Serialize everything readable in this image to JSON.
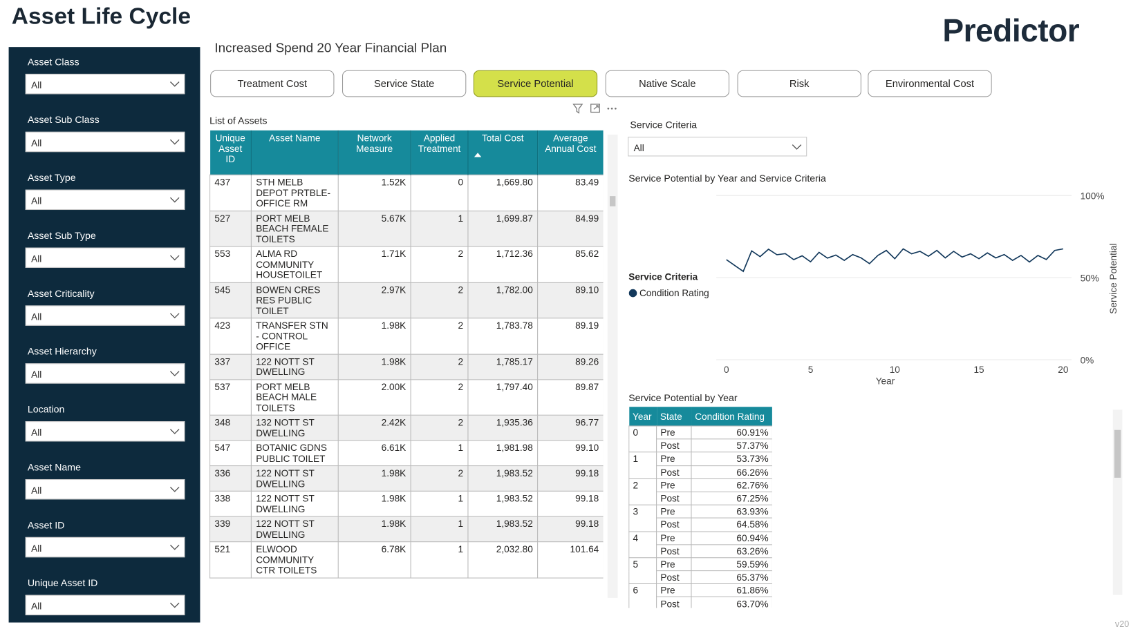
{
  "header": {
    "title": "Asset Life Cycle",
    "logo": "Predictor",
    "subtitle": "Increased Spend 20 Year Financial Plan"
  },
  "filters": [
    {
      "label": "Asset Class",
      "value": "All"
    },
    {
      "label": "Asset Sub Class",
      "value": "All"
    },
    {
      "label": "Asset Type",
      "value": "All"
    },
    {
      "label": "Asset Sub Type",
      "value": "All"
    },
    {
      "label": "Asset Criticality",
      "value": "All"
    },
    {
      "label": "Asset Hierarchy",
      "value": "All"
    },
    {
      "label": "Location",
      "value": "All"
    },
    {
      "label": "Asset Name",
      "value": "All"
    },
    {
      "label": "Asset ID",
      "value": "All"
    },
    {
      "label": "Unique Asset ID",
      "value": "All"
    }
  ],
  "tabs": [
    "Treatment Cost",
    "Service State",
    "Service Potential",
    "Native Scale",
    "Risk",
    "Environmental Cost"
  ],
  "active_tab": 2,
  "assets_table": {
    "title": "List of Assets",
    "columns": [
      "Unique Asset ID",
      "Asset Name",
      "Network Measure",
      "Applied Treatment",
      "Total Cost",
      "Average Annual Cost"
    ],
    "rows": [
      [
        "437",
        "STH MELB DEPOT PRTBLE-OFFICE RM",
        "1.52K",
        "0",
        "1,669.80",
        "83.49"
      ],
      [
        "527",
        "PORT MELB BEACH FEMALE TOILETS",
        "5.67K",
        "1",
        "1,699.87",
        "84.99"
      ],
      [
        "553",
        "ALMA RD COMMUNITY HOUSETOILET",
        "1.71K",
        "2",
        "1,712.36",
        "85.62"
      ],
      [
        "545",
        "BOWEN CRES RES PUBLIC TOILET",
        "2.97K",
        "2",
        "1,782.00",
        "89.10"
      ],
      [
        "423",
        "TRANSFER STN - CONTROL OFFICE",
        "1.98K",
        "2",
        "1,783.78",
        "89.19"
      ],
      [
        "337",
        "122 NOTT ST DWELLING",
        "1.98K",
        "2",
        "1,785.17",
        "89.26"
      ],
      [
        "537",
        "PORT MELB BEACH MALE TOILETS",
        "2.00K",
        "2",
        "1,797.40",
        "89.87"
      ],
      [
        "348",
        "132 NOTT ST DWELLING",
        "2.42K",
        "2",
        "1,935.36",
        "96.77"
      ],
      [
        "547",
        "BOTANIC GDNS PUBLIC TOILET",
        "6.61K",
        "1",
        "1,981.98",
        "99.10"
      ],
      [
        "336",
        "122 NOTT ST DWELLING",
        "1.98K",
        "2",
        "1,983.52",
        "99.18"
      ],
      [
        "338",
        "122 NOTT ST DWELLING",
        "1.98K",
        "1",
        "1,983.52",
        "99.18"
      ],
      [
        "339",
        "122 NOTT ST DWELLING",
        "1.98K",
        "1",
        "1,983.52",
        "99.18"
      ],
      [
        "521",
        "ELWOOD COMMUNITY CTR TOILETS",
        "6.78K",
        "1",
        "2,032.80",
        "101.64"
      ]
    ]
  },
  "service_criteria": {
    "label": "Service Criteria",
    "value": "All"
  },
  "chart_data": {
    "type": "line",
    "title": "Service Potential by Year and Service Criteria",
    "x": [
      0,
      0.5,
      1,
      1.5,
      2,
      2.5,
      3,
      3.5,
      4,
      4.5,
      5,
      5.5,
      6,
      6.5,
      7,
      7.5,
      8,
      8.5,
      9,
      9.5,
      10,
      10.5,
      11,
      11.5,
      12,
      12.5,
      13,
      13.5,
      14,
      14.5,
      15,
      15.5,
      16,
      16.5,
      17,
      17.5,
      18,
      18.5,
      19,
      19.5,
      20
    ],
    "series": [
      {
        "name": "Condition Rating",
        "color": "#12385b",
        "values": [
          60.91,
          57.37,
          53.73,
          66.26,
          62.76,
          67.25,
          63.93,
          64.58,
          60.94,
          63.26,
          59.59,
          65.37,
          61.86,
          63.7,
          60.5,
          64,
          62,
          58.5,
          63.5,
          66.5,
          61.5,
          67.5,
          64.5,
          66,
          63,
          66.5,
          62,
          66,
          62.5,
          64.5,
          61.5,
          65,
          62,
          64,
          60.5,
          63.5,
          59.5,
          63.5,
          61,
          66.5,
          67.5
        ]
      }
    ],
    "legend_title": "Service Criteria",
    "xlabel": "Year",
    "ylabel": "Service Potential",
    "xlim": [
      -0.6,
      20.5
    ],
    "ylim": [
      0,
      100
    ],
    "xticks": [
      0,
      5,
      10,
      15,
      20
    ],
    "yticks": [
      {
        "value": 0,
        "label": "0%"
      },
      {
        "value": 50,
        "label": "50%"
      },
      {
        "value": 100,
        "label": "100%"
      }
    ],
    "grid": true
  },
  "year_table": {
    "title": "Service Potential by Year",
    "columns": [
      "Year",
      "State",
      "Condition Rating"
    ],
    "groups": [
      {
        "year": "0",
        "rows": [
          [
            "Pre",
            "60.91%"
          ],
          [
            "Post",
            "57.37%"
          ]
        ]
      },
      {
        "year": "1",
        "rows": [
          [
            "Pre",
            "53.73%"
          ],
          [
            "Post",
            "66.26%"
          ]
        ]
      },
      {
        "year": "2",
        "rows": [
          [
            "Pre",
            "62.76%"
          ],
          [
            "Post",
            "67.25%"
          ]
        ]
      },
      {
        "year": "3",
        "rows": [
          [
            "Pre",
            "63.93%"
          ],
          [
            "Post",
            "64.58%"
          ]
        ]
      },
      {
        "year": "4",
        "rows": [
          [
            "Pre",
            "60.94%"
          ],
          [
            "Post",
            "63.26%"
          ]
        ]
      },
      {
        "year": "5",
        "rows": [
          [
            "Pre",
            "59.59%"
          ],
          [
            "Post",
            "65.37%"
          ]
        ]
      },
      {
        "year": "6",
        "rows": [
          [
            "Pre",
            "61.86%"
          ],
          [
            "Post",
            "63.70%"
          ]
        ]
      }
    ]
  },
  "version": "v20"
}
